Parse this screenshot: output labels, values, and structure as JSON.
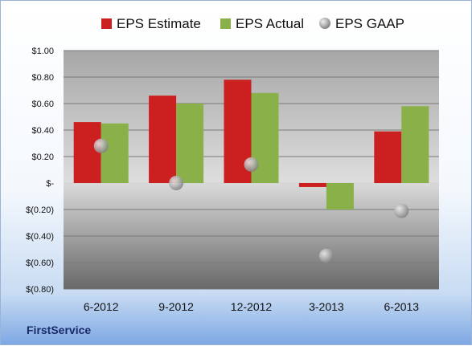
{
  "company": "FirstService",
  "chart_data": {
    "type": "bar",
    "categories": [
      "6-2012",
      "9-2012",
      "12-2012",
      "3-2013",
      "6-2013"
    ],
    "series": [
      {
        "name": "EPS Estimate",
        "kind": "bar",
        "color": "#cc1f1f",
        "values": [
          0.46,
          0.66,
          0.78,
          -0.03,
          0.39
        ]
      },
      {
        "name": "EPS Actual",
        "kind": "bar",
        "color": "#8ab04a",
        "values": [
          0.45,
          0.6,
          0.68,
          -0.2,
          0.58
        ]
      },
      {
        "name": "EPS GAAP",
        "kind": "scatter",
        "color": "#8c8c8c",
        "values": [
          0.28,
          0.0,
          0.14,
          -0.55,
          -0.21
        ]
      }
    ],
    "ylim": [
      -0.8,
      1.0
    ],
    "yticks": [
      1.0,
      0.8,
      0.6,
      0.4,
      0.2,
      0,
      -0.2,
      -0.4,
      -0.6,
      -0.8
    ],
    "ytick_labels": [
      "$1.00",
      "$0.80",
      "$0.60",
      "$0.40",
      "$0.20",
      "$-",
      "$(0.20)",
      "$(0.40)",
      "$(0.60)",
      "$(0.80)"
    ],
    "grid": true,
    "legend_position": "top"
  }
}
